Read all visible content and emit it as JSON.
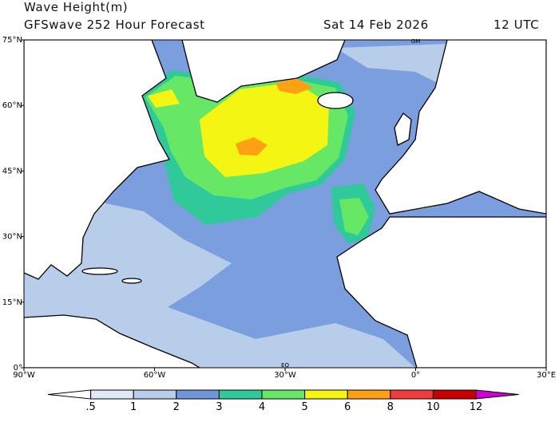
{
  "header": {
    "title": "Wave Height(m)",
    "subtitle": "GFSwave 252 Hour Forecast",
    "date": "Sat 14 Feb 2026",
    "time": "12 UTC"
  },
  "map": {
    "lon_labels": [
      "90°W",
      "60°W",
      "30°W",
      "0°",
      "30°E"
    ],
    "lat_labels": [
      "75°N",
      "60°N",
      "45°N",
      "30°N",
      "15°N",
      "0°"
    ],
    "meridian_label": "GM",
    "equator_label": "EQ"
  },
  "colorbar": {
    "labels": [
      ".5",
      "1",
      "2",
      "3",
      "4",
      "5",
      "6",
      "8",
      "10",
      "12"
    ],
    "colors": [
      "#ffffff",
      "#dfeaf8",
      "#b8cde9",
      "#6f96d8",
      "#2fc99a",
      "#66e866",
      "#f5f514",
      "#ffa014",
      "#f03c3c",
      "#c80000",
      "#d000d0"
    ]
  }
}
